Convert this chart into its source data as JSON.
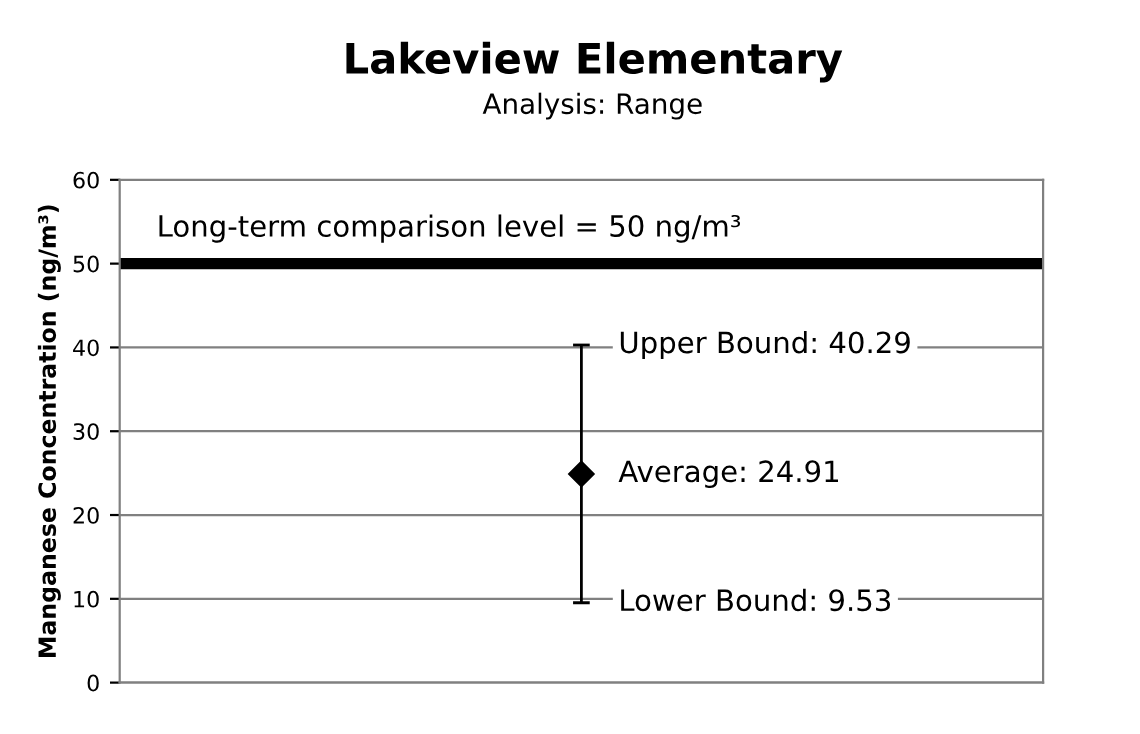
{
  "chart_data": {
    "type": "scatter",
    "title": "Lakeview Elementary",
    "subtitle": "Analysis: Range",
    "ylabel": "Manganese Concentration (ng/m³)",
    "categories": [
      null
    ],
    "series": [
      {
        "color": "#000000",
        "values": [
          24.91
        ],
        "errors": [
          [
            9.53,
            40.29
          ]
        ]
      }
    ],
    "marker": "diamond",
    "ylim": [
      0,
      60
    ],
    "yticks": [
      0,
      10,
      20,
      30,
      40,
      50,
      60
    ],
    "grid": "y",
    "ref_lines": [
      {
        "axis": "y",
        "value": 50,
        "label": "Long-term comparison level = 50 ng/m³",
        "color": "#000000"
      }
    ],
    "annotations": [
      "Upper Bound: 40.29",
      "Average: 24.91",
      "Lower Bound: 9.53"
    ]
  }
}
